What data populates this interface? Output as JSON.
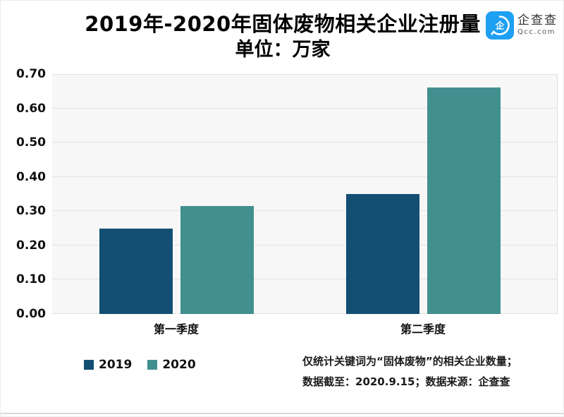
{
  "title": {
    "line1": "2019年-2020年固体废物相关企业注册量",
    "line2": "单位：万家"
  },
  "logo": {
    "name_cn": "企查查",
    "name_en": "Qcc.com",
    "badge_color": "#1e9ff2"
  },
  "chart_data": {
    "type": "bar",
    "title": "2019年-2020年固体废物相关企业注册量",
    "subtitle": "单位：万家",
    "categories": [
      "第一季度",
      "第二季度"
    ],
    "series": [
      {
        "name": "2019",
        "color": "#124F73",
        "values": [
          0.25,
          0.35
        ]
      },
      {
        "name": "2020",
        "color": "#428F90",
        "values": [
          0.315,
          0.66
        ]
      }
    ],
    "xlabel": "",
    "ylabel": "",
    "ylim": [
      0,
      0.7
    ],
    "ytick_step": 0.1,
    "ytick_labels": [
      "0.00",
      "0.10",
      "0.20",
      "0.30",
      "0.40",
      "0.50",
      "0.60",
      "0.70"
    ],
    "grid": true,
    "plot_bg": "#f7f7f7",
    "legend_position": "bottom-left"
  },
  "footnote": {
    "line1": "仅统计关键词为“固体废物”的相关企业数量；",
    "line2": "数据截至：2020.9.15；数据来源：企查查"
  }
}
